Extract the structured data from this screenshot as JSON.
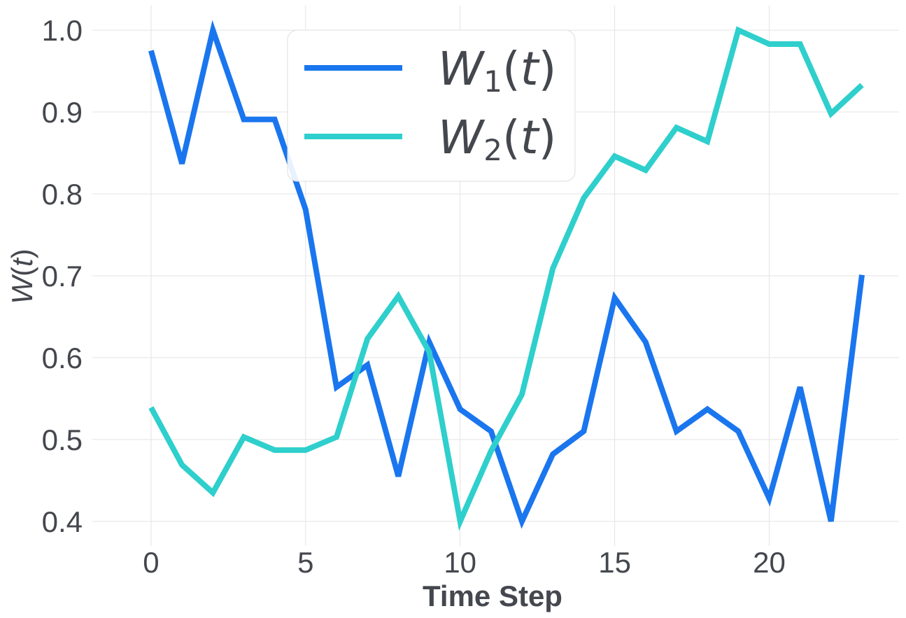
{
  "chart_data": {
    "type": "line",
    "xlabel": "Time Step",
    "ylabel_parts": {
      "symbol": "W",
      "open": "(",
      "var": "t",
      "close": ")"
    },
    "xlim": [
      -1.9,
      24.2
    ],
    "ylim": [
      0.37,
      1.03
    ],
    "x_ticks": [
      0,
      5,
      10,
      15,
      20
    ],
    "x_tick_labels": [
      "0",
      "5",
      "10",
      "15",
      "20"
    ],
    "y_ticks": [
      0.4,
      0.5,
      0.6,
      0.7,
      0.8,
      0.9,
      1.0
    ],
    "y_tick_labels": [
      "0.4",
      "0.5",
      "0.6",
      "0.7",
      "0.8",
      "0.9",
      "1.0"
    ],
    "grid": true,
    "legend_position": "top-center",
    "x": [
      0,
      1,
      2,
      3,
      4,
      5,
      6,
      7,
      8,
      9,
      10,
      11,
      12,
      13,
      14,
      15,
      16,
      17,
      18,
      19,
      20,
      21,
      22,
      23
    ],
    "series": [
      {
        "label_parts": {
          "symbol": "W",
          "sub": "1",
          "open": "(",
          "var": "t",
          "close": ")"
        },
        "color": "#1a76ee",
        "values": [
          0.975,
          0.837,
          1.0,
          0.891,
          0.891,
          0.781,
          0.564,
          0.591,
          0.455,
          0.619,
          0.537,
          0.51,
          0.4,
          0.482,
          0.51,
          0.673,
          0.619,
          0.51,
          0.537,
          0.51,
          0.428,
          0.564,
          0.4,
          0.701
        ]
      },
      {
        "label_parts": {
          "symbol": "W",
          "sub": "2",
          "open": "(",
          "var": "t",
          "close": ")"
        },
        "color": "#2ecfcc",
        "values": [
          0.539,
          0.469,
          0.435,
          0.503,
          0.487,
          0.487,
          0.503,
          0.623,
          0.675,
          0.607,
          0.4,
          0.486,
          0.555,
          0.709,
          0.795,
          0.846,
          0.829,
          0.881,
          0.864,
          1.0,
          0.983,
          0.983,
          0.898,
          0.933
        ]
      }
    ]
  }
}
